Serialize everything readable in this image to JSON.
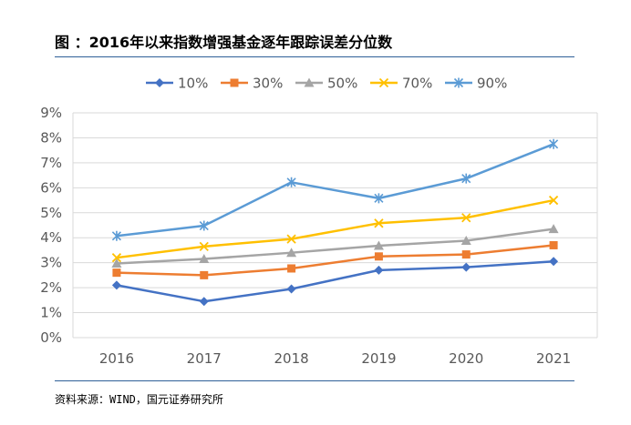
{
  "header": {
    "title": "图 ：2016年以来指数增强基金逐年跟踪误差分位数"
  },
  "footer": {
    "source": "资料来源：WIND，国元证券研究所"
  },
  "chart_data": {
    "type": "line",
    "title": "",
    "xlabel": "",
    "ylabel": "",
    "categories": [
      "2016",
      "2017",
      "2018",
      "2019",
      "2020",
      "2021"
    ],
    "ylim": [
      0,
      9
    ],
    "y_ticks": [
      "0%",
      "1%",
      "2%",
      "3%",
      "4%",
      "5%",
      "6%",
      "7%",
      "8%",
      "9%"
    ],
    "y_unit": "%",
    "grid": true,
    "legend_position": "top",
    "series": [
      {
        "name": "10%",
        "color": "#4472c4",
        "marker": "diamond",
        "values": [
          2.1,
          1.45,
          1.95,
          2.7,
          2.82,
          3.05
        ]
      },
      {
        "name": "30%",
        "color": "#ed7d31",
        "marker": "square",
        "values": [
          2.6,
          2.5,
          2.77,
          3.25,
          3.33,
          3.7
        ]
      },
      {
        "name": "50%",
        "color": "#a5a5a5",
        "marker": "triangle",
        "values": [
          2.97,
          3.15,
          3.4,
          3.68,
          3.88,
          4.35
        ]
      },
      {
        "name": "70%",
        "color": "#ffc000",
        "marker": "x",
        "values": [
          3.2,
          3.65,
          3.95,
          4.58,
          4.8,
          5.5
        ]
      },
      {
        "name": "90%",
        "color": "#5b9bd5",
        "marker": "star",
        "values": [
          4.07,
          4.48,
          6.22,
          5.58,
          6.37,
          7.75
        ]
      }
    ]
  }
}
